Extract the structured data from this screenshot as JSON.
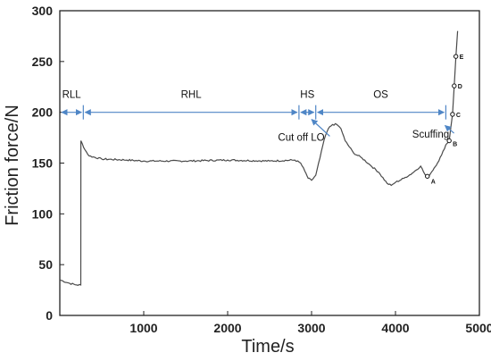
{
  "chart_data": {
    "type": "line",
    "xlabel": "Time/s",
    "ylabel": "Friction force/N",
    "xlim": [
      0,
      5000
    ],
    "ylim": [
      0,
      300
    ],
    "xticks": [
      1000,
      2000,
      3000,
      4000,
      5000
    ],
    "yticks": [
      0,
      50,
      100,
      150,
      200,
      250,
      300
    ],
    "grid": false,
    "series": [
      {
        "color": "#4a4a4a",
        "points": [
          [
            0,
            35
          ],
          [
            100,
            32
          ],
          [
            200,
            30
          ],
          [
            250,
            30
          ],
          [
            251,
            172
          ],
          [
            300,
            163
          ],
          [
            350,
            157
          ],
          [
            500,
            154
          ],
          [
            800,
            153
          ],
          [
            1000,
            152
          ],
          [
            1500,
            152
          ],
          [
            2000,
            153
          ],
          [
            2500,
            152
          ],
          [
            2800,
            153
          ],
          [
            2870,
            150
          ],
          [
            2920,
            142
          ],
          [
            2960,
            135
          ],
          [
            3000,
            133
          ],
          [
            3050,
            138
          ],
          [
            3100,
            155
          ],
          [
            3150,
            173
          ],
          [
            3200,
            184
          ],
          [
            3250,
            188
          ],
          [
            3300,
            188
          ],
          [
            3350,
            184
          ],
          [
            3400,
            172
          ],
          [
            3500,
            160
          ],
          [
            3600,
            155
          ],
          [
            3700,
            148
          ],
          [
            3800,
            141
          ],
          [
            3900,
            130
          ],
          [
            3950,
            128
          ],
          [
            4000,
            131
          ],
          [
            4100,
            135
          ],
          [
            4200,
            140
          ],
          [
            4300,
            147
          ],
          [
            4350,
            139
          ],
          [
            4380,
            136
          ],
          [
            4420,
            140
          ],
          [
            4460,
            145
          ],
          [
            4500,
            150
          ],
          [
            4550,
            158
          ],
          [
            4600,
            168
          ],
          [
            4640,
            172
          ],
          [
            4660,
            185
          ],
          [
            4680,
            198
          ],
          [
            4700,
            226
          ],
          [
            4720,
            255
          ],
          [
            4740,
            280
          ]
        ]
      }
    ],
    "phases": [
      {
        "label": "RLL",
        "from": 0,
        "to": 280
      },
      {
        "label": "RHL",
        "from": 280,
        "to": 2850
      },
      {
        "label": "HS",
        "from": 2850,
        "to": 3050
      },
      {
        "label": "OS",
        "from": 3050,
        "to": 4600
      }
    ],
    "phase_line_y": 200,
    "phase_color": "#4f86c6",
    "markers": [
      {
        "label": "A",
        "x": 4380,
        "y": 137
      },
      {
        "label": "B",
        "x": 4640,
        "y": 172
      },
      {
        "label": "C",
        "x": 4680,
        "y": 198
      },
      {
        "label": "D",
        "x": 4700,
        "y": 226
      },
      {
        "label": "E",
        "x": 4720,
        "y": 255
      }
    ],
    "annotations": [
      {
        "text": "Cut off LO",
        "x": 2600,
        "y": 172,
        "arrow_to": [
          3000,
          193
        ]
      },
      {
        "text": "Scuffing",
        "x": 4200,
        "y": 175,
        "arrow_to": [
          4590,
          187
        ]
      }
    ]
  }
}
